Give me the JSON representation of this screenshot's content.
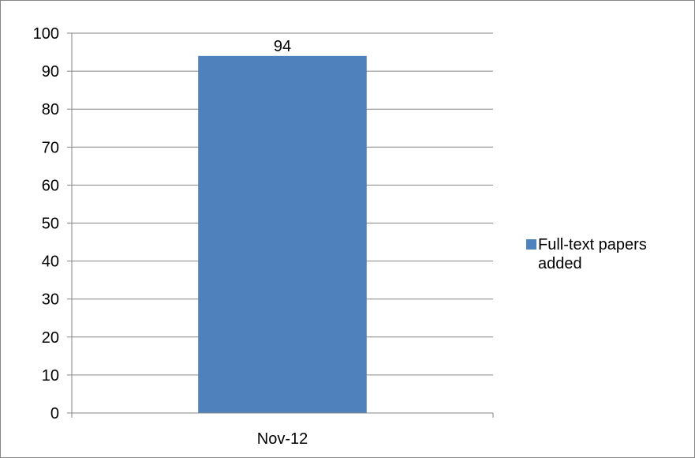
{
  "chart_data": {
    "type": "bar",
    "categories": [
      "Nov-12"
    ],
    "series": [
      {
        "name": "Full-text papers added",
        "values": [
          94
        ],
        "color": "#4F81BD"
      }
    ],
    "data_labels": [
      "94"
    ],
    "ylim": [
      0,
      100
    ],
    "y_ticks": [
      "0",
      "10",
      "20",
      "30",
      "40",
      "50",
      "60",
      "70",
      "80",
      "90",
      "100"
    ],
    "grid": true,
    "legend_position": "right"
  }
}
